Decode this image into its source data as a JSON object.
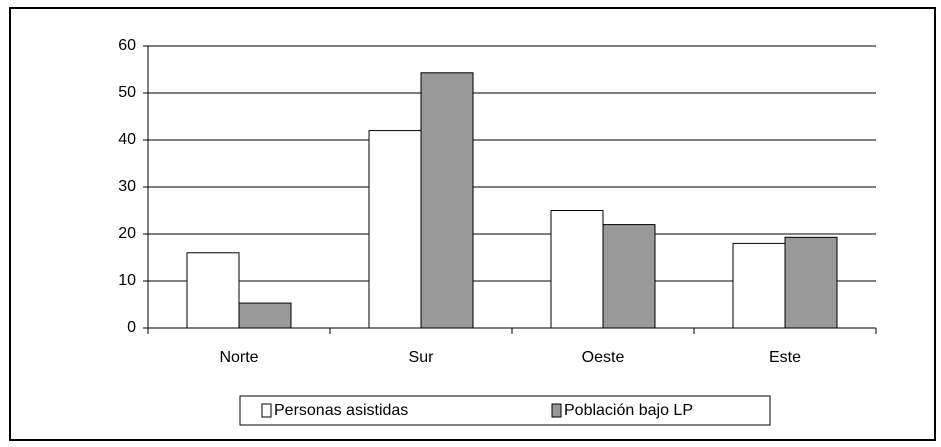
{
  "chart_data": {
    "type": "bar",
    "categories": [
      "Norte",
      "Sur",
      "Oeste",
      "Este"
    ],
    "series": [
      {
        "name": "Personas asistidas",
        "color": "#ffffff",
        "values": [
          16,
          42,
          25,
          18
        ]
      },
      {
        "name": "Población bajo LP",
        "color": "#999999",
        "values": [
          5.3,
          54.3,
          22,
          19.3
        ]
      }
    ],
    "ylim": [
      0,
      60
    ],
    "yticks": [
      0,
      10,
      20,
      30,
      40,
      50,
      60
    ],
    "grid": true,
    "legend": "bottom"
  }
}
